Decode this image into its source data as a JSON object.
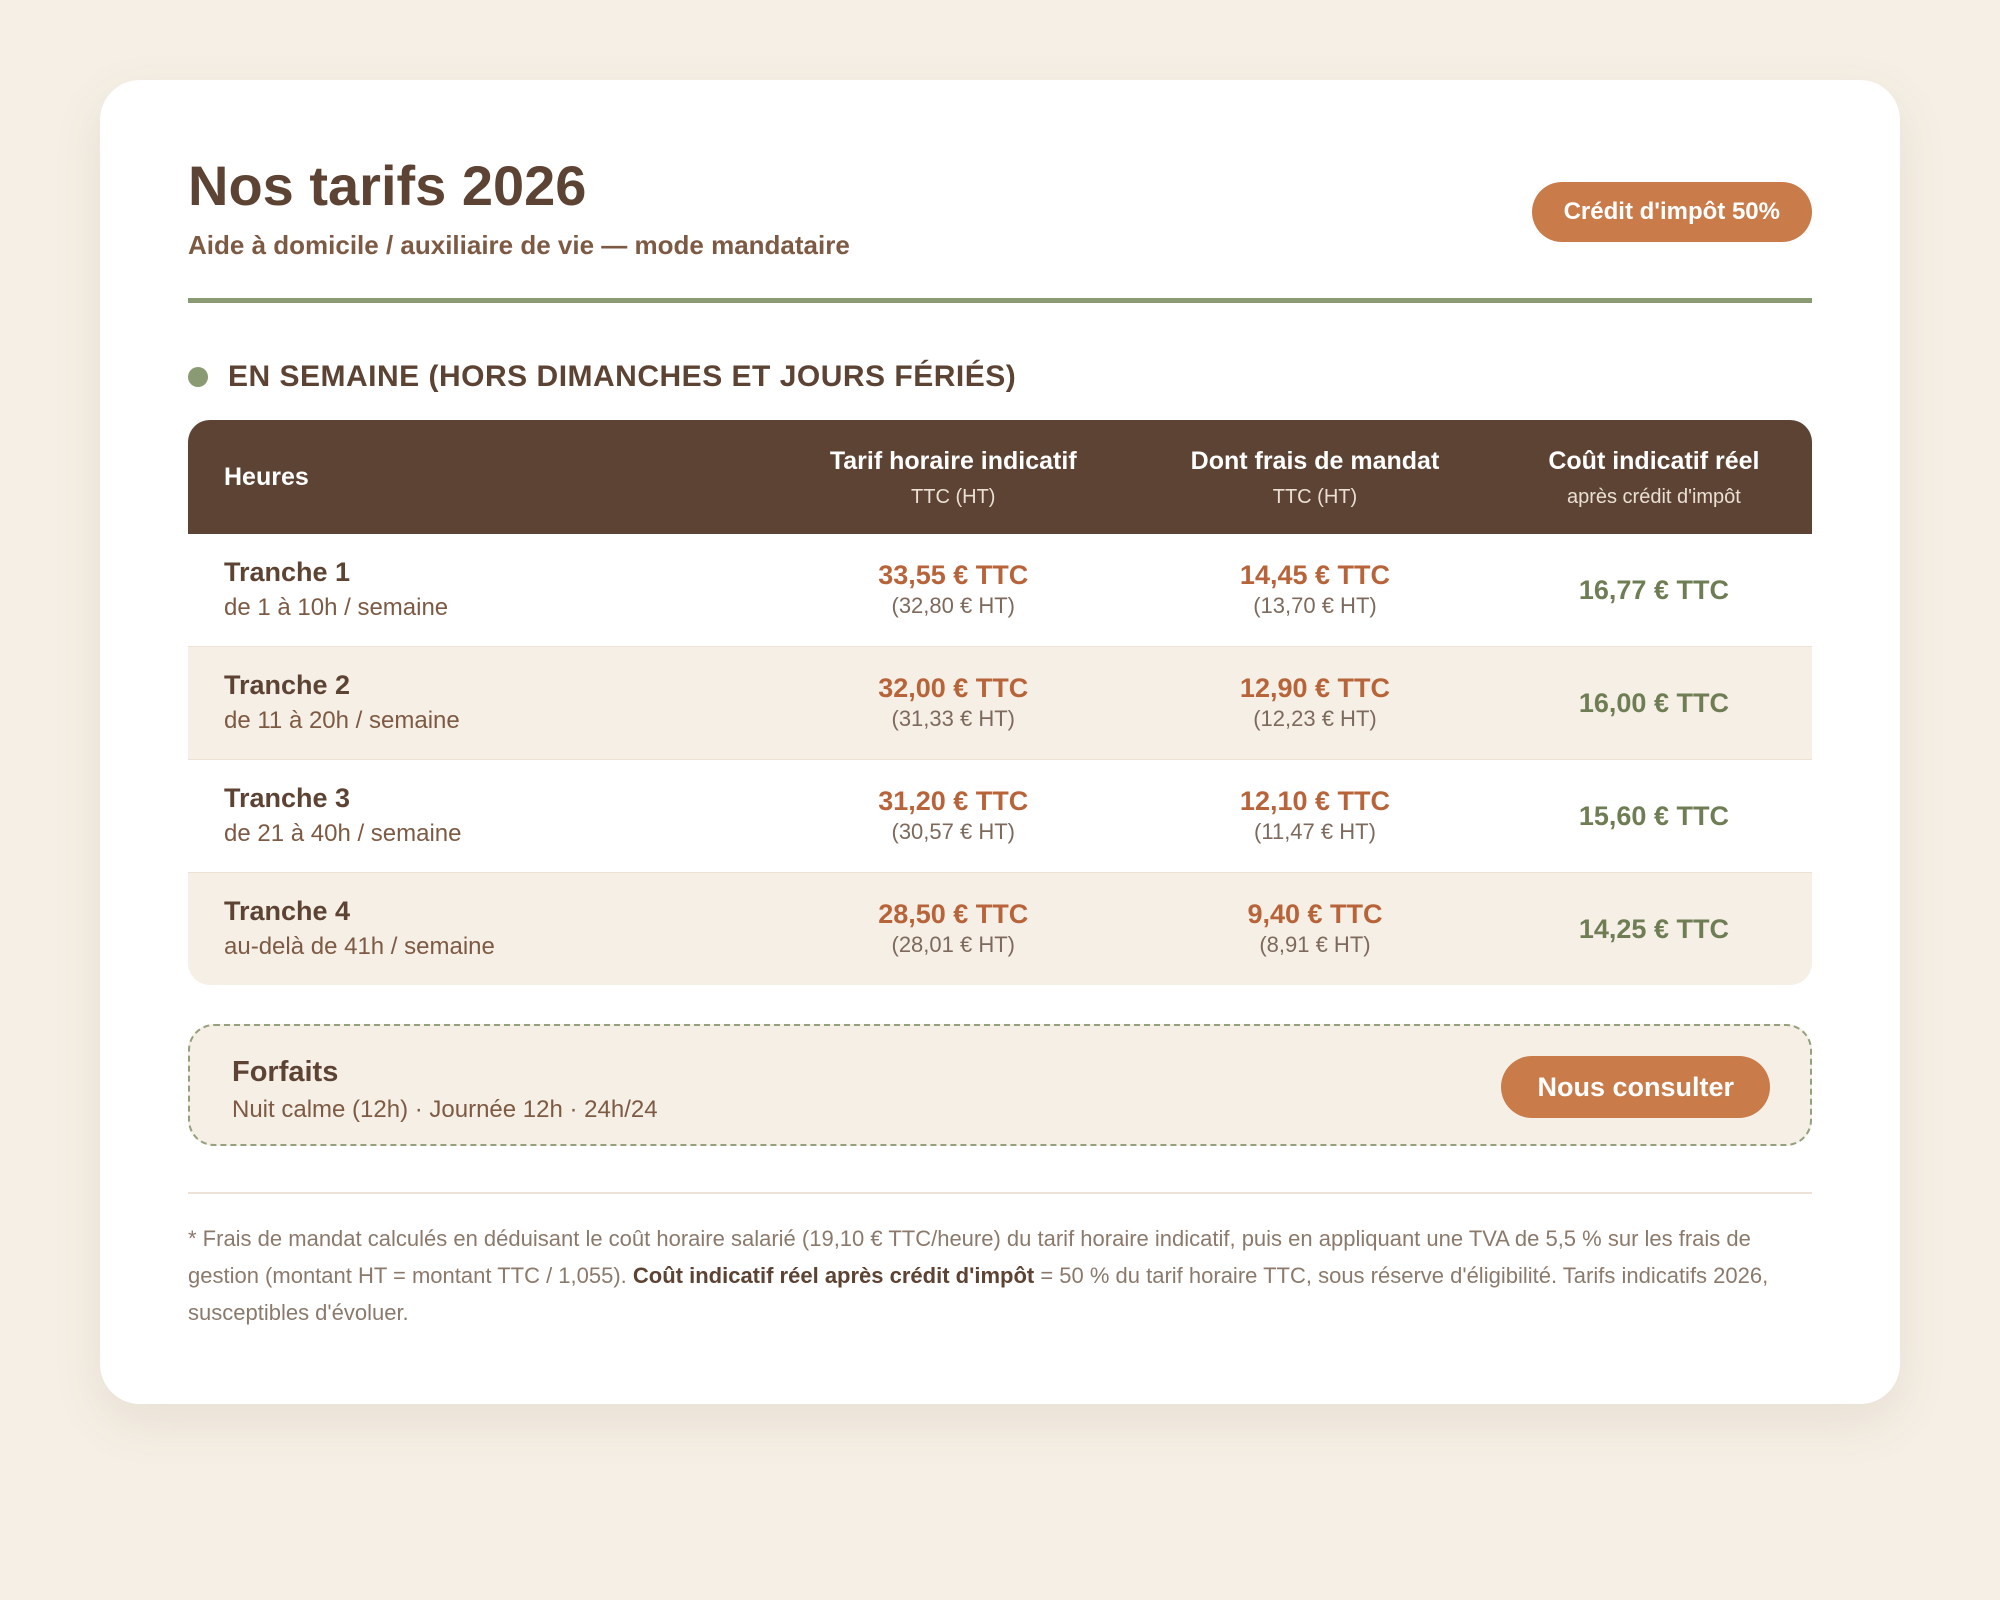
{
  "header": {
    "title": "Nos tarifs 2026",
    "subtitle": "Aide à domicile / auxiliaire de vie — mode mandataire",
    "badge": "Crédit d'impôt 50%"
  },
  "section": {
    "heading": "EN SEMAINE (HORS DIMANCHES ET JOURS FÉRIÉS)"
  },
  "table": {
    "columns": [
      {
        "main": "Heures",
        "sub": ""
      },
      {
        "main": "Tarif horaire indicatif",
        "sub": "TTC (HT)"
      },
      {
        "main": "Dont frais de mandat",
        "sub": "TTC (HT)"
      },
      {
        "main": "Coût indicatif réel",
        "sub": "après crédit d'impôt"
      }
    ],
    "rows": [
      {
        "name": "Tranche 1",
        "desc": "de 1 à 10h / semaine",
        "tarif_ttc": "33,55 € TTC",
        "tarif_ht": "(32,80 € HT)",
        "frais_ttc": "14,45 € TTC",
        "frais_ht": "(13,70 € HT)",
        "reel": "16,77 € TTC"
      },
      {
        "name": "Tranche 2",
        "desc": "de 11 à 20h / semaine",
        "tarif_ttc": "32,00 € TTC",
        "tarif_ht": "(31,33 € HT)",
        "frais_ttc": "12,90 € TTC",
        "frais_ht": "(12,23 € HT)",
        "reel": "16,00 € TTC"
      },
      {
        "name": "Tranche 3",
        "desc": "de 21 à 40h / semaine",
        "tarif_ttc": "31,20 € TTC",
        "tarif_ht": "(30,57 € HT)",
        "frais_ttc": "12,10 € TTC",
        "frais_ht": "(11,47 € HT)",
        "reel": "15,60 € TTC"
      },
      {
        "name": "Tranche 4",
        "desc": "au-delà de 41h / semaine",
        "tarif_ttc": "28,50 € TTC",
        "tarif_ht": "(28,01 € HT)",
        "frais_ttc": "9,40 € TTC",
        "frais_ht": "(8,91 € HT)",
        "reel": "14,25 € TTC"
      }
    ]
  },
  "forfaits": {
    "title": "Forfaits",
    "subtitle": "Nuit calme (12h) · Journée 12h · 24h/24",
    "button_label": "Nous consulter"
  },
  "footnote": {
    "part1": "* Frais de mandat calculés en déduisant le coût horaire salarié (19,10 € TTC/heure) du tarif horaire indicatif, puis en appliquant une TVA de 5,5 % sur les frais de gestion (montant HT = montant TTC / 1,055). ",
    "bold": "Coût indicatif réel après crédit d'impôt",
    "part2": " = 50 % du tarif horaire TTC, sous réserve d'éligibilité. Tarifs indicatifs 2026, susceptibles d'évoluer."
  },
  "colors": {
    "background": "#f5efe5",
    "brown": "#5c4333",
    "accent_orange": "#c97b4a",
    "price_orange": "#b8643a",
    "green": "#8a9a72",
    "real_green": "#6f7d55"
  }
}
